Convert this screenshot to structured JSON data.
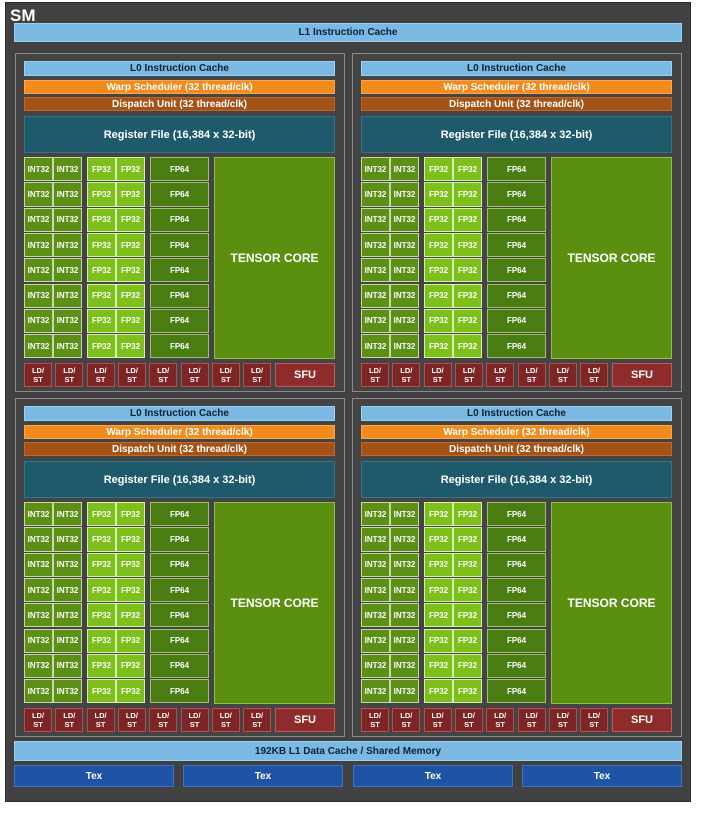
{
  "sm": {
    "title": "SM",
    "l1_instruction_cache": "L1 Instruction Cache",
    "l1_data_cache": "192KB L1 Data Cache / Shared Memory",
    "tex_units": [
      "Tex",
      "Tex",
      "Tex",
      "Tex"
    ]
  },
  "partition": {
    "l0_cache": "L0 Instruction Cache",
    "warp_scheduler": "Warp Scheduler (32 thread/clk)",
    "dispatch_unit": "Dispatch Unit (32 thread/clk)",
    "register_file": "Register File (16,384 x 32-bit)",
    "int32_label": "INT32",
    "fp32_label": "FP32",
    "fp64_label": "FP64",
    "tensor_core": "TENSOR CORE",
    "ldst_line1": "LD/",
    "ldst_line2": "ST",
    "sfu": "SFU",
    "rows": 8,
    "ldst_units": 8
  },
  "partition_count": 4,
  "colors": {
    "sm_background": "#414141",
    "cache_blue": "#79b9e4",
    "warp_orange": "#f28a1c",
    "dispatch_brown": "#a45216",
    "register_teal": "#1e5a6c",
    "int32_green": "#5b8f15",
    "fp32_green": "#7dc01b",
    "fp64_green": "#4a7d12",
    "tensor_green": "#5a8f10",
    "ldst_red": "#7d2424",
    "tex_blue": "#1f53a6"
  }
}
